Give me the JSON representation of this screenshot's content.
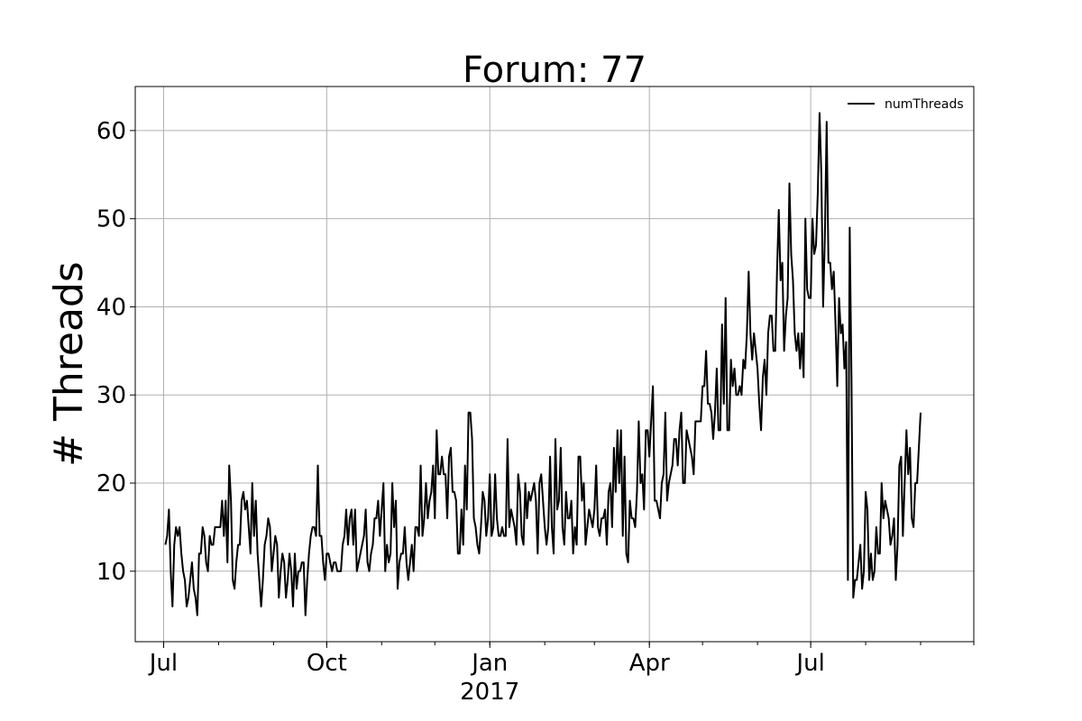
{
  "chart_data": {
    "type": "line",
    "title": "Forum: 77",
    "xlabel": "",
    "ylabel": "# Threads",
    "x_start": "2016-07-02",
    "x_end": "2017-09-15",
    "xlim": [
      "2016-06-15",
      "2017-10-01"
    ],
    "ylim": [
      2,
      65
    ],
    "yticks": [
      10,
      20,
      30,
      40,
      50,
      60
    ],
    "xticks": [
      {
        "date": "2016-07-01",
        "label": "Jul"
      },
      {
        "date": "2016-10-01",
        "label": "Oct"
      },
      {
        "date": "2017-01-01",
        "label": "Jan",
        "sublabel": "2017"
      },
      {
        "date": "2017-04-01",
        "label": "Apr"
      },
      {
        "date": "2017-07-01",
        "label": "Jul"
      }
    ],
    "grid": true,
    "legend": {
      "position": "top-right",
      "entries": [
        "numThreads"
      ]
    },
    "series_color": "#000000",
    "series": [
      {
        "name": "numThreads",
        "values": [
          13,
          14,
          17,
          10,
          6,
          13,
          15,
          14,
          15,
          12,
          10,
          9,
          6,
          7,
          9,
          11,
          8,
          7,
          5,
          12,
          12,
          15,
          14,
          11,
          10,
          14,
          13,
          13,
          15,
          15,
          15,
          15,
          18,
          14,
          18,
          11,
          22,
          18,
          9,
          8,
          11,
          13,
          13,
          18,
          19,
          17,
          18,
          15,
          12,
          20,
          14,
          18,
          12,
          9,
          6,
          9,
          13,
          14,
          16,
          15,
          10,
          12,
          14,
          13,
          7,
          10,
          12,
          11,
          7,
          9,
          12,
          10,
          6,
          12,
          8,
          10,
          10,
          11,
          11,
          5,
          9,
          12,
          14,
          15,
          15,
          14,
          22,
          14,
          14,
          11,
          9,
          12,
          12,
          11,
          10,
          11,
          11,
          10,
          10,
          10,
          13,
          14,
          17,
          13,
          16,
          17,
          13,
          17,
          10,
          11,
          12,
          13,
          14,
          17,
          11,
          10,
          12,
          13,
          16,
          16,
          18,
          14,
          17,
          20,
          10,
          13,
          11,
          12,
          20,
          15,
          18,
          8,
          11,
          12,
          12,
          15,
          11,
          9,
          11,
          13,
          10,
          15,
          15,
          14,
          22,
          14,
          16,
          20,
          16,
          18,
          19,
          22,
          16,
          26,
          21,
          21,
          23,
          21,
          21,
          16,
          23,
          24,
          19,
          19,
          18,
          12,
          12,
          17,
          13,
          22,
          17,
          28,
          28,
          25,
          16,
          15,
          13,
          12,
          15,
          19,
          18,
          14,
          16,
          21,
          14,
          15,
          21,
          16,
          14,
          14,
          15,
          14,
          14,
          25,
          15,
          17,
          16,
          15,
          13,
          21,
          19,
          14,
          13,
          20,
          16,
          19,
          18,
          19,
          20,
          18,
          12,
          20,
          21,
          18,
          15,
          13,
          15,
          23,
          15,
          12,
          25,
          17,
          18,
          24,
          15,
          13,
          19,
          16,
          16,
          18,
          12,
          15,
          13,
          23,
          23,
          18,
          20,
          13,
          15,
          17,
          16,
          15,
          17,
          22,
          15,
          14,
          16,
          16,
          17,
          13,
          19,
          20,
          15,
          24,
          19,
          26,
          20,
          26,
          14,
          23,
          12,
          11,
          18,
          16,
          16,
          15,
          19,
          27,
          20,
          21,
          17,
          26,
          26,
          23,
          27,
          31,
          18,
          18,
          17,
          16,
          20,
          21,
          28,
          18,
          20,
          21,
          22,
          25,
          25,
          22,
          26,
          28,
          20,
          20,
          26,
          25,
          24,
          23,
          21,
          27,
          27,
          27,
          27,
          31,
          31,
          35,
          29,
          29,
          28,
          25,
          28,
          33,
          26,
          26,
          38,
          29,
          41,
          26,
          26,
          34,
          31,
          33,
          30,
          30,
          31,
          30,
          34,
          33,
          37,
          44,
          37,
          34,
          37,
          35,
          33,
          29,
          26,
          32,
          34,
          30,
          37,
          39,
          39,
          35,
          35,
          44,
          51,
          43,
          45,
          35,
          39,
          41,
          54,
          46,
          43,
          37,
          35,
          37,
          33,
          37,
          32,
          50,
          42,
          41,
          41,
          50,
          46,
          47,
          53,
          62,
          55,
          40,
          48,
          61,
          45,
          45,
          42,
          44,
          38,
          31,
          41,
          37,
          38,
          33,
          36,
          9,
          49,
          32,
          7,
          9,
          9,
          11,
          13,
          8,
          10,
          19,
          17,
          9,
          12,
          9,
          10,
          15,
          12,
          12,
          20,
          16,
          18,
          17,
          16,
          13,
          14,
          16,
          9,
          13,
          22,
          23,
          14,
          20,
          26,
          21,
          24,
          16,
          15,
          20,
          20,
          24,
          28
        ]
      }
    ]
  }
}
